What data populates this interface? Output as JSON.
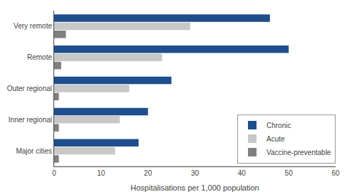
{
  "chart_data": {
    "type": "bar",
    "orientation": "horizontal",
    "categories": [
      "Major cities",
      "Inner regional",
      "Outer regional",
      "Remote",
      "Very remote"
    ],
    "series": [
      {
        "name": "Chronic",
        "color": "#1F4E8C",
        "values": [
          18,
          20,
          25,
          50,
          46
        ]
      },
      {
        "name": "Acute",
        "color": "#C8C8C8",
        "values": [
          13,
          14,
          16,
          23,
          29
        ]
      },
      {
        "name": "Vaccine-preventable",
        "color": "#7F7F7F",
        "values": [
          1.0,
          1.0,
          1.0,
          1.5,
          2.5
        ]
      }
    ],
    "xlabel": "Hospitalisations per 1,000 population",
    "xlim": [
      0,
      60
    ],
    "xticks": [
      0,
      10,
      20,
      30,
      40,
      50,
      60
    ],
    "grid": false,
    "legend": "lower right"
  }
}
